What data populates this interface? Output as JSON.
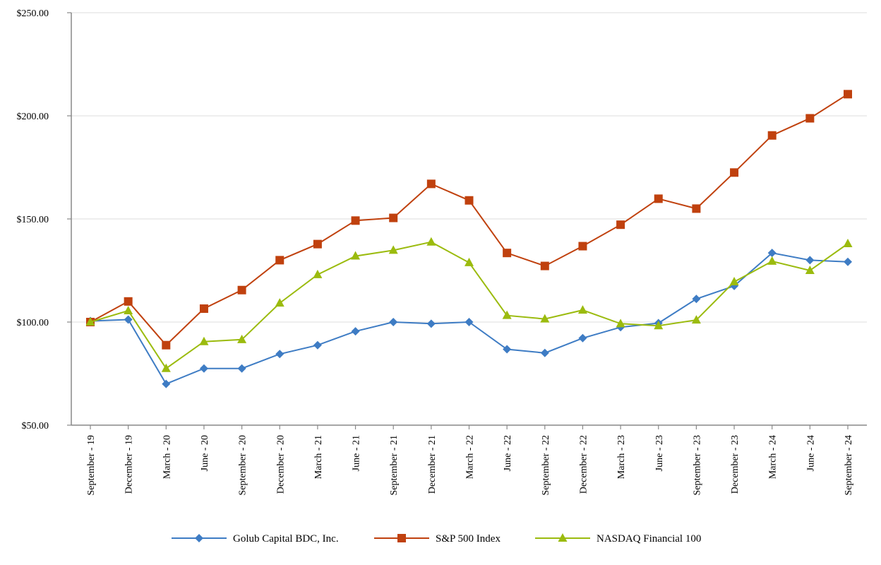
{
  "chart_data": {
    "type": "line",
    "title": "",
    "xlabel": "",
    "ylabel": "",
    "ylim": [
      50,
      250
    ],
    "yticks": [
      50,
      100,
      150,
      200,
      250
    ],
    "ytick_labels": [
      "$50.00",
      "$100.00",
      "$150.00",
      "$200.00",
      "$250.00"
    ],
    "grid": true,
    "legend_position": "bottom",
    "categories": [
      "September - 19",
      "December - 19",
      "March - 20",
      "June - 20",
      "September - 20",
      "December - 20",
      "March - 21",
      "June - 21",
      "September - 21",
      "December - 21",
      "March - 22",
      "June - 22",
      "September - 22",
      "December - 22",
      "March - 23",
      "June - 23",
      "September - 23",
      "December - 23",
      "March - 24",
      "June - 24",
      "September - 24"
    ],
    "series": [
      {
        "name": "Golub Capital BDC, Inc.",
        "color": "#3e7cc4",
        "marker": "diamond",
        "values": [
          100.5,
          101.2,
          70.0,
          77.5,
          77.5,
          84.5,
          88.8,
          95.5,
          100.0,
          99.2,
          100.0,
          86.8,
          85.0,
          92.2,
          97.5,
          99.5,
          111.2,
          117.5,
          133.5,
          130.0,
          129.2
        ]
      },
      {
        "name": "S&P 500 Index",
        "color": "#c0410e",
        "marker": "square",
        "values": [
          100.0,
          110.0,
          88.8,
          106.5,
          115.5,
          130.0,
          137.8,
          149.2,
          150.5,
          167.0,
          159.0,
          133.5,
          127.2,
          136.8,
          147.2,
          159.8,
          155.0,
          172.5,
          190.5,
          198.8,
          210.5
        ]
      },
      {
        "name": "NASDAQ Financial 100",
        "color": "#9bbb0e",
        "marker": "triangle",
        "values": [
          100.0,
          105.5,
          77.5,
          90.5,
          91.5,
          109.2,
          123.0,
          132.0,
          134.8,
          138.8,
          128.8,
          103.2,
          101.5,
          105.8,
          99.2,
          98.2,
          101.0,
          119.5,
          129.5,
          125.0,
          138.0
        ]
      }
    ]
  }
}
